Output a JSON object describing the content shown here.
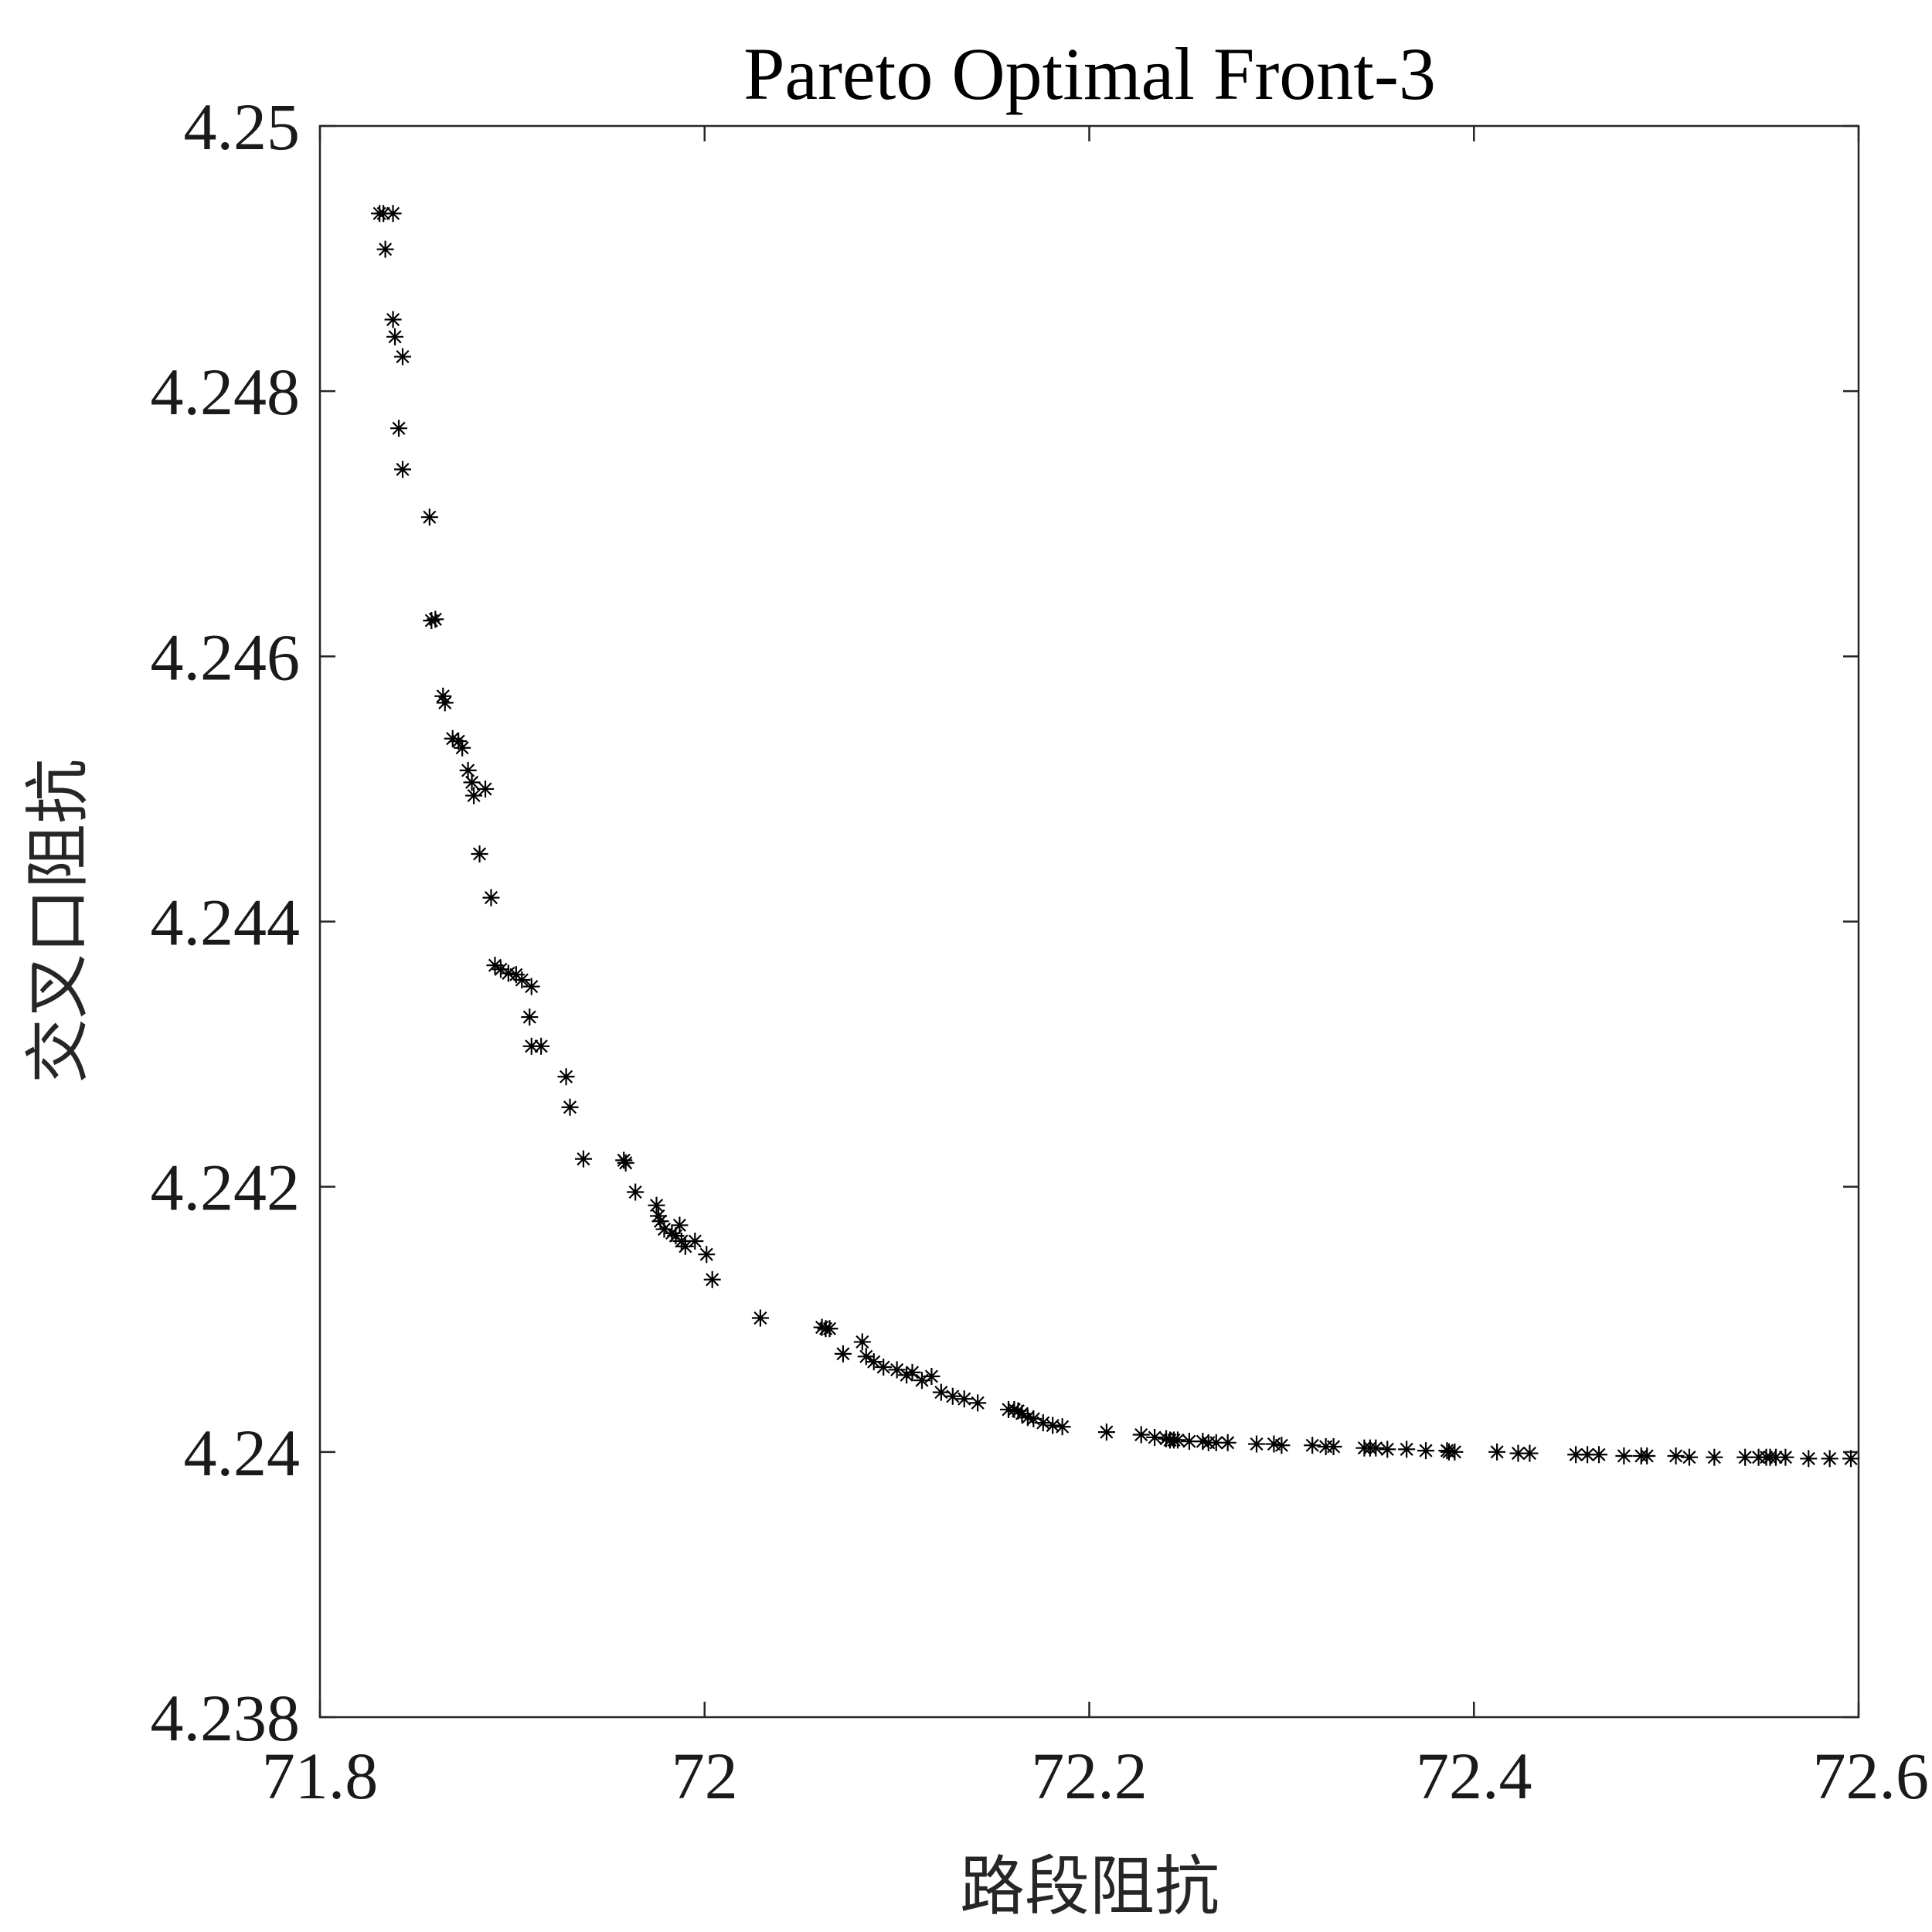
{
  "chart_data": {
    "type": "scatter",
    "title": "Pareto Optimal Front-3",
    "xlabel": "路段阻抗",
    "ylabel": "交叉口阻抗",
    "xlim": [
      71.8,
      72.6
    ],
    "ylim": [
      4.238,
      4.25
    ],
    "xticks": [
      71.8,
      72.0,
      72.2,
      72.4,
      72.6
    ],
    "xtick_labels": [
      "71.8",
      "72",
      "72.2",
      "72.4",
      "72.6"
    ],
    "yticks": [
      4.238,
      4.24,
      4.242,
      4.244,
      4.246,
      4.248,
      4.25
    ],
    "ytick_labels": [
      "4.238",
      "4.24",
      "4.242",
      "4.244",
      "4.246",
      "4.248",
      "4.25"
    ],
    "marker": "asterisk",
    "marker_color": "#000000",
    "grid": false,
    "legend": "none",
    "series": [
      {
        "x": [
          71.831,
          71.833,
          71.838,
          71.834,
          71.838,
          71.839,
          71.843,
          71.841,
          71.843,
          71.857,
          71.858,
          71.86,
          71.864,
          71.865,
          71.869,
          71.872,
          71.874,
          71.877,
          71.879,
          71.88,
          71.886,
          71.883,
          71.889,
          71.891,
          71.894,
          71.898,
          71.902,
          71.905,
          71.91,
          71.909,
          71.91,
          71.915,
          71.928,
          71.93,
          71.937,
          71.958,
          71.959,
          71.964,
          71.975,
          71.976,
          71.977,
          71.979,
          71.983,
          71.985,
          71.987,
          71.988,
          71.99,
          71.995,
          72.001,
          72.004,
          72.029,
          72.061,
          72.063,
          72.065,
          72.072,
          72.082,
          72.084,
          72.088,
          72.093,
          72.1,
          72.105,
          72.108,
          72.113,
          72.118,
          72.123,
          72.129,
          72.135,
          72.142,
          72.158,
          72.161,
          72.163,
          72.165,
          72.168,
          72.171,
          72.176,
          72.181,
          72.186,
          72.209,
          72.227,
          72.234,
          72.24,
          72.242,
          72.244,
          72.246,
          72.252,
          72.259,
          72.262,
          72.266,
          72.272,
          72.287,
          72.296,
          72.3,
          72.316,
          72.323,
          72.327,
          72.343,
          72.346,
          72.349,
          72.355,
          72.365,
          72.375,
          72.386,
          72.387,
          72.39,
          72.412,
          72.423,
          72.429,
          72.453,
          72.459,
          72.465,
          72.478,
          72.487,
          72.49,
          72.505,
          72.512,
          72.525,
          72.541,
          72.548,
          72.552,
          72.554,
          72.557,
          72.562,
          72.574,
          72.585,
          72.596
        ],
        "y": [
          4.24934,
          4.24934,
          4.24934,
          4.24907,
          4.24854,
          4.24841,
          4.24826,
          4.24772,
          4.24741,
          4.24705,
          4.24627,
          4.24628,
          4.2457,
          4.24565,
          4.24538,
          4.24536,
          4.24531,
          4.24514,
          4.24505,
          4.24495,
          4.245,
          4.24451,
          4.24418,
          4.24367,
          4.24364,
          4.24361,
          4.2436,
          4.24356,
          4.24351,
          4.24328,
          4.24306,
          4.24306,
          4.24283,
          4.2426,
          4.24221,
          4.2422,
          4.24218,
          4.24196,
          4.24186,
          4.24178,
          4.24174,
          4.24168,
          4.24165,
          4.24163,
          4.24171,
          4.24159,
          4.24155,
          4.24159,
          4.24149,
          4.2413,
          4.24101,
          4.24094,
          4.24093,
          4.24093,
          4.24074,
          4.24083,
          4.24072,
          4.24068,
          4.24064,
          4.24062,
          4.24058,
          4.2406,
          4.24054,
          4.24057,
          4.24045,
          4.24042,
          4.2404,
          4.24037,
          4.24032,
          4.24032,
          4.24031,
          4.24029,
          4.24026,
          4.24025,
          4.24022,
          4.2402,
          4.24019,
          4.24015,
          4.24013,
          4.24011,
          4.2401,
          4.24009,
          4.24009,
          4.24009,
          4.24008,
          4.24008,
          4.24007,
          4.24007,
          4.24007,
          4.24006,
          4.24006,
          4.24005,
          4.24005,
          4.24004,
          4.24004,
          4.24003,
          4.24003,
          4.24003,
          4.24002,
          4.24002,
          4.24001,
          4.24001,
          4.24,
          4.24,
          4.24,
          4.23999,
          4.23999,
          4.23998,
          4.23998,
          4.23998,
          4.23997,
          4.23997,
          4.23997,
          4.23997,
          4.23996,
          4.23996,
          4.23996,
          4.23996,
          4.23996,
          4.23996,
          4.23996,
          4.23996,
          4.23995,
          4.23995,
          4.23995
        ]
      }
    ]
  }
}
